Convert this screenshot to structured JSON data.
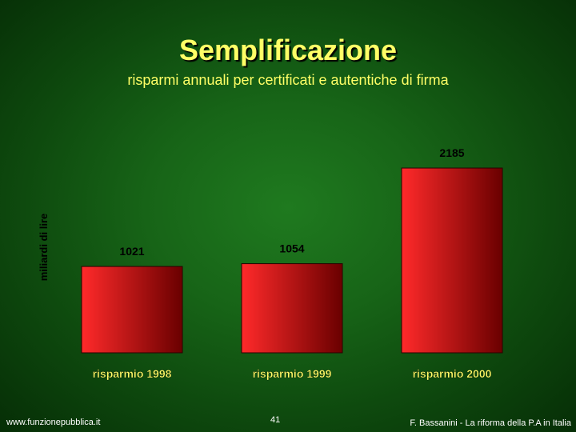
{
  "slide": {
    "title": "Semplificazione",
    "subtitle": "risparmi annuali per certificati e autentiche di firma",
    "footer_left": "www.funzionepubblica.it",
    "page_number": "41",
    "footer_right": "F. Bassanini - La riforma della P.A in Italia"
  },
  "colors": {
    "title_text": "#ffff66",
    "chart_text": "#ffff66",
    "footer_text": "#ffffff",
    "bar_light": "#ff2a2a",
    "bar_dark": "#6a0000",
    "background_center": "#1f7a1f",
    "background_edge": "#062e06"
  },
  "chart_data": {
    "type": "bar",
    "title": "",
    "xlabel": "",
    "ylabel": "miliardi di lire",
    "categories": [
      "risparmio 1998",
      "risparmio 1999",
      "risparmio 2000"
    ],
    "values": [
      1021,
      1054,
      2185
    ],
    "data_labels": [
      "1021",
      "1054",
      "2185"
    ],
    "ylim": [
      0,
      2400
    ],
    "grid": false,
    "legend": "none"
  }
}
